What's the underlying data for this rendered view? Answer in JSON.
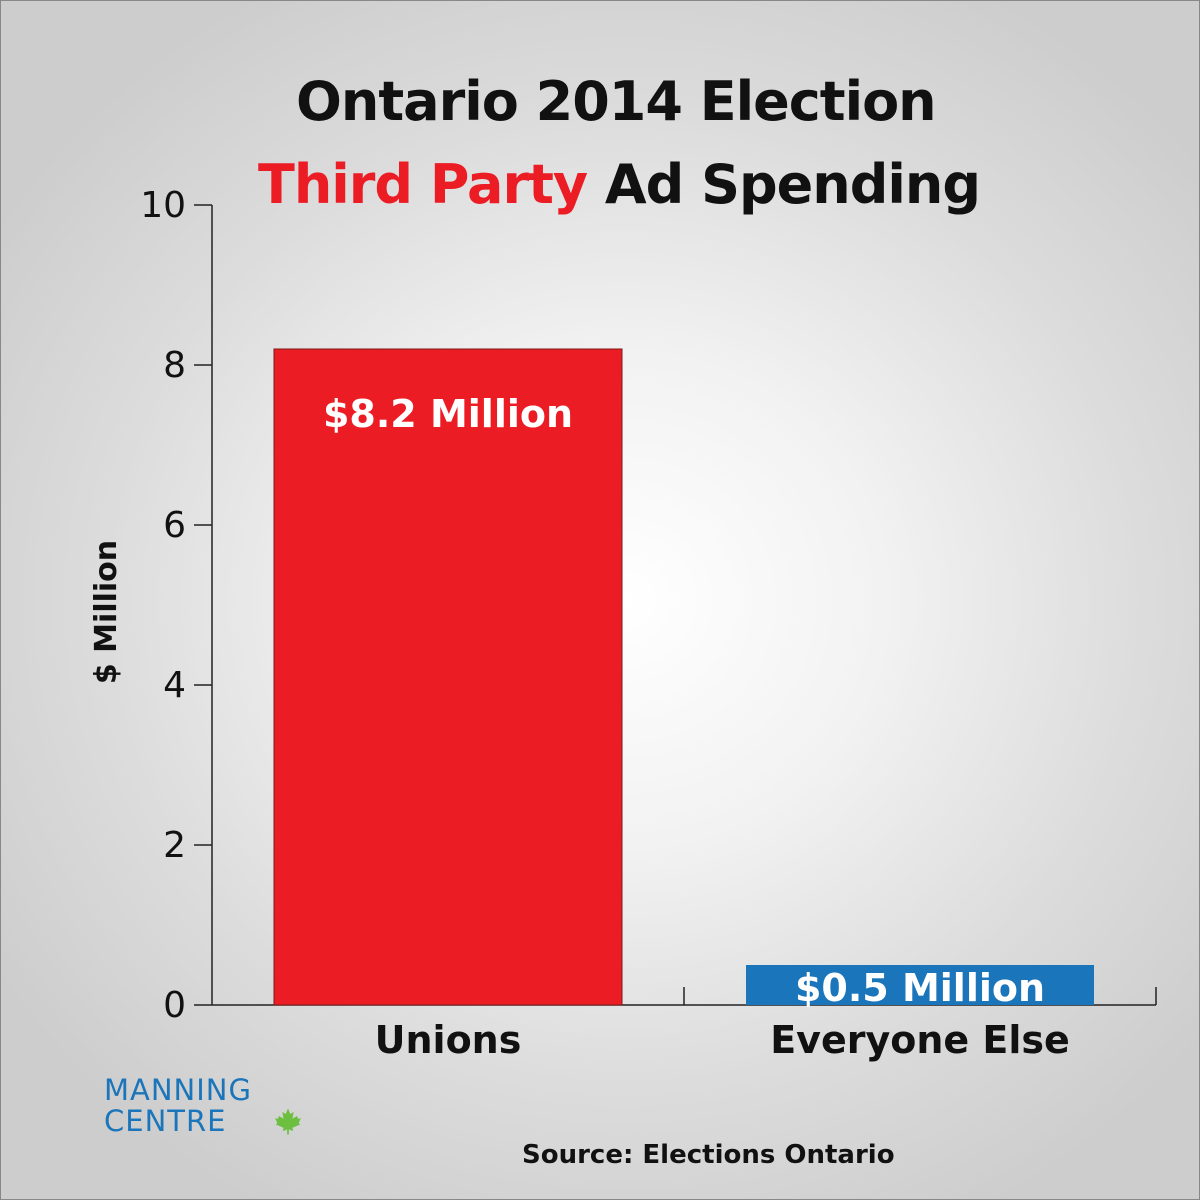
{
  "title": {
    "line1": "Ontario 2014 Election",
    "line2_accent": "Third Party",
    "line2_rest": " Ad Spending",
    "accent_color": "#ec1c24"
  },
  "chart_data": {
    "type": "bar",
    "categories": [
      "Unions",
      "Everyone Else"
    ],
    "values": [
      8.2,
      0.5
    ],
    "data_labels": [
      "$8.2 Million",
      "$0.5 Million"
    ],
    "bar_colors": [
      "#ec1c24",
      "#1b75bb"
    ],
    "ylabel": "$ Million",
    "xlabel": "",
    "ylim": [
      0,
      10
    ],
    "yticks": [
      0,
      2,
      4,
      6,
      8,
      10
    ],
    "grid": false,
    "legend": "none"
  },
  "logo": {
    "line1": "MANNING",
    "line2": "CENTRE",
    "icon": "maple-leaf-icon",
    "color": "#1b75bb"
  },
  "source": "Source: Elections Ontario"
}
